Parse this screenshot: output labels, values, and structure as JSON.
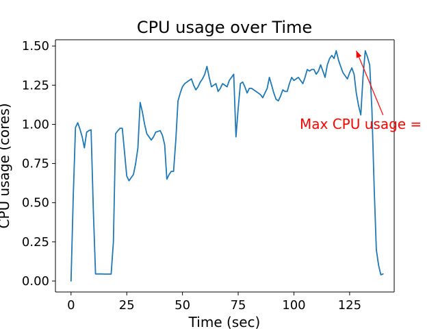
{
  "chart_data": {
    "type": "line",
    "title": "CPU usage over Time",
    "xlabel": "Time (sec)",
    "ylabel": "CPU usage (cores)",
    "xlim": [
      -7,
      145
    ],
    "ylim": [
      -0.07,
      1.54
    ],
    "xticks": [
      0,
      25,
      50,
      75,
      100,
      125
    ],
    "xtick_labels": [
      "0",
      "25",
      "50",
      "75",
      "100",
      "125"
    ],
    "yticks": [
      0.0,
      0.25,
      0.5,
      0.75,
      1.0,
      1.25,
      1.5
    ],
    "ytick_labels": [
      "0.00",
      "0.25",
      "0.50",
      "0.75",
      "1.00",
      "1.25",
      "1.50"
    ],
    "grid": false,
    "series": [
      {
        "color": "#1f77b4",
        "x": [
          0,
          1,
          2,
          3,
          4,
          5,
          6,
          7,
          8,
          9,
          10,
          11,
          12,
          13,
          14,
          15,
          16,
          17,
          18,
          19,
          20,
          21,
          22,
          23,
          24,
          25,
          26,
          27,
          28,
          29,
          30,
          31,
          32,
          33,
          34,
          35,
          36,
          37,
          38,
          39,
          40,
          41,
          42,
          43,
          44,
          45,
          46,
          47,
          48,
          49,
          50,
          51,
          52,
          53,
          54,
          55,
          56,
          57,
          58,
          59,
          60,
          61,
          62,
          63,
          64,
          65,
          66,
          67,
          68,
          69,
          70,
          71,
          72,
          73,
          74,
          75,
          76,
          77,
          78,
          79,
          80,
          81,
          82,
          83,
          84,
          85,
          86,
          87,
          88,
          89,
          90,
          91,
          92,
          93,
          94,
          95,
          96,
          97,
          98,
          99,
          100,
          101,
          102,
          103,
          104,
          105,
          106,
          107,
          108,
          109,
          110,
          111,
          112,
          113,
          114,
          115,
          116,
          117,
          118,
          119,
          120,
          121,
          122,
          123,
          124,
          125,
          126,
          127,
          128,
          129,
          130,
          131,
          132,
          133,
          134,
          135,
          136,
          137,
          138,
          139,
          140
        ],
        "y": [
          0.0,
          0.55,
          0.98,
          1.01,
          0.97,
          0.92,
          0.85,
          0.95,
          0.96,
          0.965,
          0.45,
          0.045,
          0.045,
          0.045,
          0.045,
          0.044,
          0.044,
          0.044,
          0.044,
          0.25,
          0.94,
          0.96,
          0.975,
          0.975,
          0.82,
          0.67,
          0.64,
          0.66,
          0.68,
          0.75,
          0.85,
          1.14,
          1.08,
          1.0,
          0.94,
          0.92,
          0.9,
          0.92,
          0.95,
          0.955,
          0.96,
          0.93,
          0.87,
          0.65,
          0.68,
          0.7,
          0.7,
          0.9,
          1.15,
          1.2,
          1.24,
          1.26,
          1.27,
          1.28,
          1.29,
          1.25,
          1.22,
          1.24,
          1.27,
          1.29,
          1.32,
          1.37,
          1.3,
          1.24,
          1.25,
          1.26,
          1.21,
          1.23,
          1.26,
          1.25,
          1.24,
          1.28,
          1.3,
          1.32,
          0.92,
          1.1,
          1.26,
          1.27,
          1.24,
          1.2,
          1.23,
          1.23,
          1.22,
          1.21,
          1.2,
          1.19,
          1.17,
          1.2,
          1.23,
          1.3,
          1.25,
          1.2,
          1.16,
          1.15,
          1.18,
          1.22,
          1.21,
          1.21,
          1.26,
          1.3,
          1.28,
          1.29,
          1.3,
          1.28,
          1.26,
          1.3,
          1.35,
          1.34,
          1.35,
          1.35,
          1.32,
          1.34,
          1.38,
          1.34,
          1.3,
          1.38,
          1.42,
          1.44,
          1.42,
          1.47,
          1.41,
          1.37,
          1.33,
          1.31,
          1.29,
          1.33,
          1.36,
          1.32,
          1.2,
          1.12,
          1.06,
          1.3,
          1.47,
          1.43,
          1.38,
          1.1,
          0.6,
          0.2,
          0.1,
          0.04,
          0.045
        ]
      }
    ],
    "annotations": [
      {
        "text": "Max CPU usage = ",
        "color": "#ff0000",
        "xy": [
          128,
          1.47
        ],
        "xytext": [
          140,
          1.06
        ]
      }
    ]
  }
}
